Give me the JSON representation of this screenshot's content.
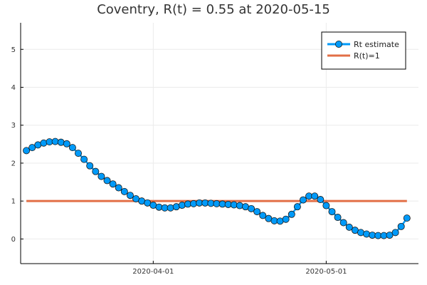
{
  "chart_data": {
    "type": "line",
    "title": "Coventry, R(t) = 0.55 at 2020-05-15",
    "xlabel": "",
    "ylabel": "",
    "x_ticks": [
      "2020-04-01",
      "2020-05-01"
    ],
    "y_ticks": [
      0,
      1,
      2,
      3,
      4,
      5
    ],
    "xlim": [
      "2020-03-09",
      "2020-05-17"
    ],
    "ylim": [
      -0.65,
      5.7
    ],
    "grid": true,
    "legend_position": "top-right",
    "series": [
      {
        "name": "Rt estimate",
        "color": "#009af9",
        "marker": "circle",
        "points": [
          [
            "2020-03-10",
            2.33
          ],
          [
            "2020-03-11",
            2.41
          ],
          [
            "2020-03-12",
            2.48
          ],
          [
            "2020-03-13",
            2.53
          ],
          [
            "2020-03-14",
            2.56
          ],
          [
            "2020-03-15",
            2.57
          ],
          [
            "2020-03-16",
            2.55
          ],
          [
            "2020-03-17",
            2.51
          ],
          [
            "2020-03-18",
            2.41
          ],
          [
            "2020-03-19",
            2.26
          ],
          [
            "2020-03-20",
            2.1
          ],
          [
            "2020-03-21",
            1.93
          ],
          [
            "2020-03-22",
            1.78
          ],
          [
            "2020-03-23",
            1.65
          ],
          [
            "2020-03-24",
            1.54
          ],
          [
            "2020-03-25",
            1.45
          ],
          [
            "2020-03-26",
            1.35
          ],
          [
            "2020-03-27",
            1.25
          ],
          [
            "2020-03-28",
            1.15
          ],
          [
            "2020-03-29",
            1.06
          ],
          [
            "2020-03-30",
            1.0
          ],
          [
            "2020-03-31",
            0.95
          ],
          [
            "2020-04-01",
            0.89
          ],
          [
            "2020-04-02",
            0.84
          ],
          [
            "2020-04-03",
            0.82
          ],
          [
            "2020-04-04",
            0.82
          ],
          [
            "2020-04-05",
            0.85
          ],
          [
            "2020-04-06",
            0.89
          ],
          [
            "2020-04-07",
            0.92
          ],
          [
            "2020-04-08",
            0.93
          ],
          [
            "2020-04-09",
            0.95
          ],
          [
            "2020-04-10",
            0.95
          ],
          [
            "2020-04-11",
            0.94
          ],
          [
            "2020-04-12",
            0.93
          ],
          [
            "2020-04-13",
            0.92
          ],
          [
            "2020-04-14",
            0.91
          ],
          [
            "2020-04-15",
            0.9
          ],
          [
            "2020-04-16",
            0.88
          ],
          [
            "2020-04-17",
            0.85
          ],
          [
            "2020-04-18",
            0.8
          ],
          [
            "2020-04-19",
            0.72
          ],
          [
            "2020-04-20",
            0.62
          ],
          [
            "2020-04-21",
            0.54
          ],
          [
            "2020-04-22",
            0.48
          ],
          [
            "2020-04-23",
            0.47
          ],
          [
            "2020-04-24",
            0.52
          ],
          [
            "2020-04-25",
            0.65
          ],
          [
            "2020-04-26",
            0.85
          ],
          [
            "2020-04-27",
            1.03
          ],
          [
            "2020-04-28",
            1.13
          ],
          [
            "2020-04-29",
            1.13
          ],
          [
            "2020-04-30",
            1.04
          ],
          [
            "2020-05-01",
            0.88
          ],
          [
            "2020-05-02",
            0.72
          ],
          [
            "2020-05-03",
            0.57
          ],
          [
            "2020-05-04",
            0.43
          ],
          [
            "2020-05-05",
            0.31
          ],
          [
            "2020-05-06",
            0.23
          ],
          [
            "2020-05-07",
            0.17
          ],
          [
            "2020-05-08",
            0.13
          ],
          [
            "2020-05-09",
            0.1
          ],
          [
            "2020-05-10",
            0.09
          ],
          [
            "2020-05-11",
            0.09
          ],
          [
            "2020-05-12",
            0.1
          ],
          [
            "2020-05-13",
            0.17
          ],
          [
            "2020-05-14",
            0.33
          ],
          [
            "2020-05-15",
            0.55
          ]
        ]
      },
      {
        "name": "R(t)=1",
        "color": "#e26f46",
        "marker": "none",
        "points": [
          [
            "2020-03-10",
            1
          ],
          [
            "2020-05-15",
            1
          ]
        ]
      }
    ]
  }
}
